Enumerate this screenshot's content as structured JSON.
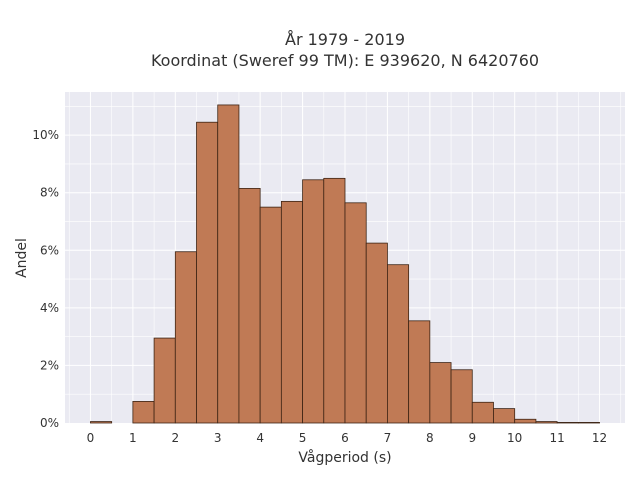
{
  "chart_data": {
    "type": "bar",
    "title": [
      "År 1979 - 2019",
      "Koordinat (Sweref 99 TM): E 939620, N 6420760"
    ],
    "xlabel": "Vågperiod (s)",
    "ylabel": "Andel",
    "xlim": [
      -0.6,
      12.6
    ],
    "ylim": [
      0,
      11.5
    ],
    "x_ticks": [
      0,
      1,
      2,
      3,
      4,
      5,
      6,
      7,
      8,
      9,
      10,
      11,
      12
    ],
    "y_ticks": [
      0,
      2,
      4,
      6,
      8,
      10
    ],
    "y_tick_suffix": "%",
    "grid": true,
    "bin_width": 0.5,
    "bins": [
      {
        "start": 0.0,
        "value": 0.05
      },
      {
        "start": 0.5,
        "value": 0.0
      },
      {
        "start": 1.0,
        "value": 0.75
      },
      {
        "start": 1.5,
        "value": 2.95
      },
      {
        "start": 2.0,
        "value": 5.95
      },
      {
        "start": 2.5,
        "value": 10.45
      },
      {
        "start": 3.0,
        "value": 11.05
      },
      {
        "start": 3.5,
        "value": 8.15
      },
      {
        "start": 4.0,
        "value": 7.5
      },
      {
        "start": 4.5,
        "value": 7.7
      },
      {
        "start": 5.0,
        "value": 8.45
      },
      {
        "start": 5.5,
        "value": 8.5
      },
      {
        "start": 6.0,
        "value": 7.65
      },
      {
        "start": 6.5,
        "value": 6.25
      },
      {
        "start": 7.0,
        "value": 5.5
      },
      {
        "start": 7.5,
        "value": 3.55
      },
      {
        "start": 8.0,
        "value": 2.1
      },
      {
        "start": 8.5,
        "value": 1.85
      },
      {
        "start": 9.0,
        "value": 0.72
      },
      {
        "start": 9.5,
        "value": 0.5
      },
      {
        "start": 10.0,
        "value": 0.13
      },
      {
        "start": 10.5,
        "value": 0.05
      },
      {
        "start": 11.0,
        "value": 0.02
      },
      {
        "start": 11.5,
        "value": 0.02
      }
    ],
    "colors": {
      "bar_fill": "#c07a55",
      "bar_stroke": "#3d2414",
      "plot_background": "#eaeaf2",
      "grid": "#ffffff"
    }
  }
}
